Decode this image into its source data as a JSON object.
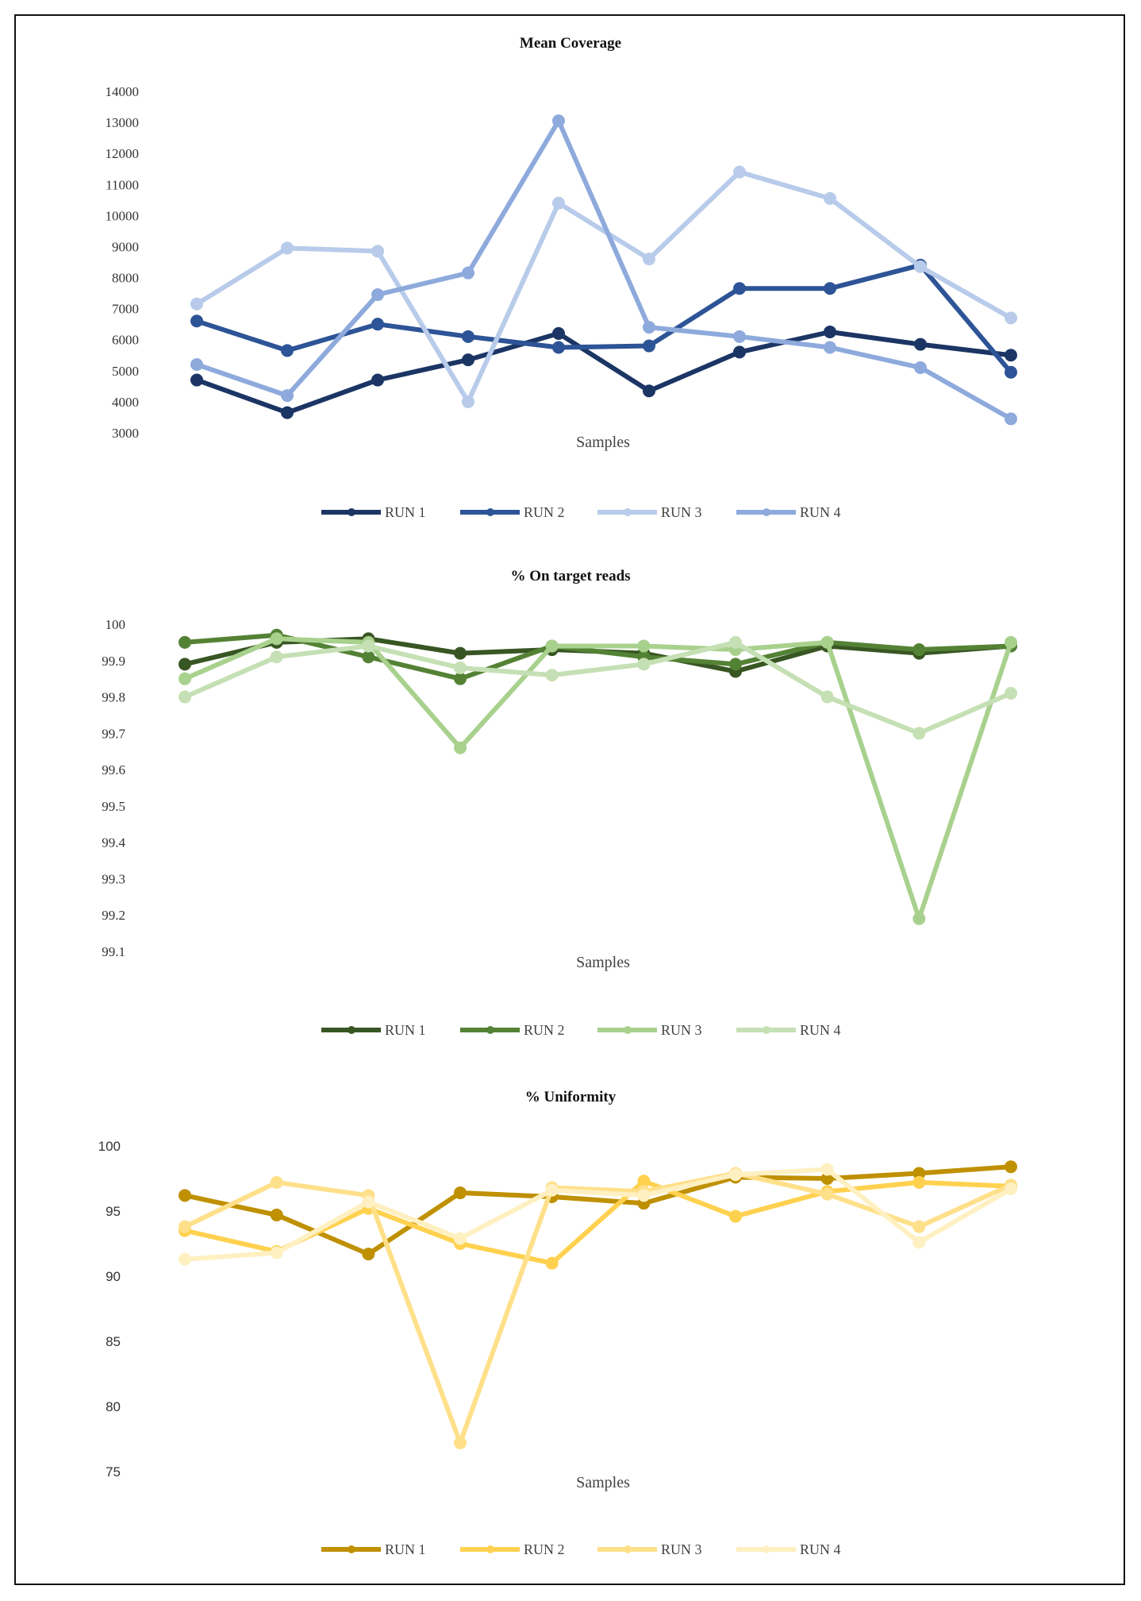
{
  "chart_data": [
    {
      "type": "line",
      "title": "Mean Coverage",
      "xlabel": "Samples",
      "ylabel": "",
      "ylim": [
        3000,
        14000
      ],
      "ytick_step": 1000,
      "yticks": [
        "14000",
        "13000",
        "12000",
        "11000",
        "10000",
        "9000",
        "8000",
        "7000",
        "6000",
        "5000",
        "4000",
        "3000"
      ],
      "x": [
        1,
        2,
        3,
        4,
        5,
        6,
        7,
        8,
        9,
        10
      ],
      "series": [
        {
          "name": "RUN 1",
          "color": "#1b3564",
          "values": [
            4700,
            3650,
            4700,
            5350,
            6200,
            4350,
            5600,
            6250,
            5850,
            5500
          ]
        },
        {
          "name": "RUN 2",
          "color": "#2d5496",
          "values": [
            6600,
            5650,
            6500,
            6100,
            5750,
            5800,
            7650,
            7650,
            8400,
            4950
          ]
        },
        {
          "name": "RUN 3",
          "color": "#b8cbea",
          "values": [
            7150,
            8950,
            8850,
            4000,
            10400,
            8600,
            11400,
            10550,
            8350,
            6700
          ]
        },
        {
          "name": "RUN 4",
          "color": "#8eaadc",
          "values": [
            5200,
            4200,
            7450,
            8150,
            13050,
            6400,
            6100,
            5750,
            5100,
            3450
          ]
        }
      ]
    },
    {
      "type": "line",
      "title": "% On target reads",
      "xlabel": "Samples",
      "ylabel": "",
      "ylim": [
        99.1,
        100
      ],
      "ytick_step": 0.1,
      "yticks": [
        "100",
        "99.9",
        "99.8",
        "99.7",
        "99.6",
        "99.5",
        "99.4",
        "99.3",
        "99.2",
        "99.1"
      ],
      "x": [
        1,
        2,
        3,
        4,
        5,
        6,
        7,
        8,
        9,
        10
      ],
      "series": [
        {
          "name": "RUN 1",
          "color": "#385623",
          "values": [
            99.89,
            99.95,
            99.96,
            99.92,
            99.93,
            99.92,
            99.87,
            99.94,
            99.92,
            99.94
          ]
        },
        {
          "name": "RUN 2",
          "color": "#548235",
          "values": [
            99.95,
            99.97,
            99.91,
            99.85,
            99.94,
            99.91,
            99.89,
            99.95,
            99.93,
            99.94
          ]
        },
        {
          "name": "RUN 3",
          "color": "#a9d18e",
          "values": [
            99.85,
            99.96,
            99.95,
            99.66,
            99.94,
            99.94,
            99.93,
            99.95,
            99.19,
            99.95
          ]
        },
        {
          "name": "RUN 4",
          "color": "#c5e0b4",
          "values": [
            99.8,
            99.91,
            99.94,
            99.88,
            99.86,
            99.89,
            99.95,
            99.8,
            99.7,
            99.81
          ]
        }
      ]
    },
    {
      "type": "line",
      "title": "% Uniformity",
      "xlabel": "Samples",
      "ylabel": "",
      "ylim": [
        75,
        100
      ],
      "ytick_step": 5,
      "yticks": [
        "100",
        "95",
        "90",
        "85",
        "80",
        "75"
      ],
      "x": [
        1,
        2,
        3,
        4,
        5,
        6,
        7,
        8,
        9,
        10
      ],
      "series": [
        {
          "name": "RUN 1",
          "color": "#bf9000",
          "values": [
            96.2,
            94.7,
            91.7,
            96.4,
            96.1,
            95.6,
            97.6,
            97.5,
            97.9,
            98.4
          ]
        },
        {
          "name": "RUN 2",
          "color": "#ffd14f",
          "values": [
            93.5,
            91.9,
            95.2,
            92.5,
            91.0,
            97.3,
            94.6,
            96.5,
            97.2,
            96.9
          ]
        },
        {
          "name": "RUN 3",
          "color": "#ffe08a",
          "values": [
            93.8,
            97.2,
            96.2,
            77.2,
            96.8,
            96.5,
            97.9,
            96.3,
            93.8,
            97.0
          ]
        },
        {
          "name": "RUN 4",
          "color": "#fff0c2",
          "values": [
            91.3,
            91.8,
            95.7,
            92.9,
            96.6,
            96.2,
            97.8,
            98.2,
            92.6,
            96.7
          ]
        }
      ]
    }
  ]
}
